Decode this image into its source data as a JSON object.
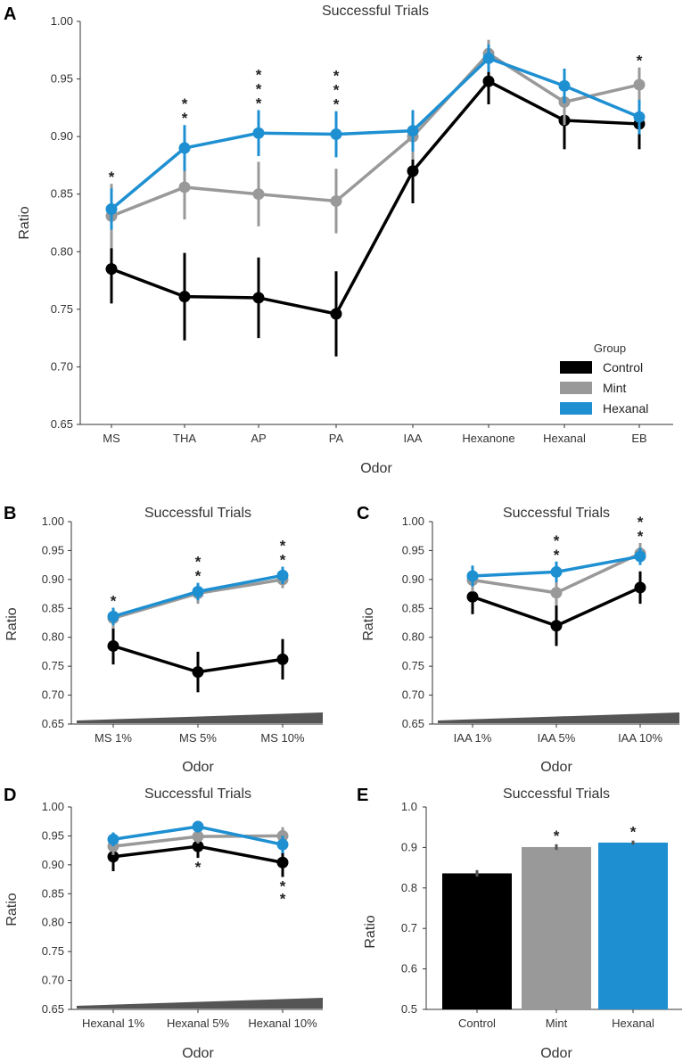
{
  "colors": {
    "Control": "#000000",
    "Mint": "#999999",
    "Hexanal": "#1e90d2",
    "red": "#d22a2a",
    "wedge": "#555555"
  },
  "panels": [
    {
      "letter": "A",
      "title": "Successful Trials",
      "xlabel": "Odor",
      "ylabel": "Ratio",
      "yticks": [
        "0.65",
        "0.70",
        "0.75",
        "0.80",
        "0.85",
        "0.90",
        "0.95",
        "1.00"
      ],
      "categories": [
        "MS",
        "THA",
        "AP",
        "PA",
        "IAA",
        "Hexanone",
        "Hexanal",
        "EB"
      ],
      "legend_title": "Group",
      "legend_items": [
        "Control",
        "Mint",
        "Hexanal"
      ]
    },
    {
      "letter": "B",
      "title": "Successful Trials",
      "xlabel": "Odor",
      "ylabel": "Ratio",
      "yticks": [
        "0.65",
        "0.70",
        "0.75",
        "0.80",
        "0.85",
        "0.90",
        "0.95",
        "1.00"
      ],
      "categories": [
        "MS 1%",
        "MS 5%",
        "MS 10%"
      ]
    },
    {
      "letter": "C",
      "title": "Successful Trials",
      "xlabel": "Odor",
      "ylabel": "Ratio",
      "yticks": [
        "0.65",
        "0.70",
        "0.75",
        "0.80",
        "0.85",
        "0.90",
        "0.95",
        "1.00"
      ],
      "categories": [
        "IAA 1%",
        "IAA 5%",
        "IAA 10%"
      ]
    },
    {
      "letter": "D",
      "title": "Successful Trials",
      "xlabel": "Odor",
      "ylabel": "Ratio",
      "yticks": [
        "0.65",
        "0.70",
        "0.75",
        "0.80",
        "0.85",
        "0.90",
        "0.95",
        "1.00"
      ],
      "categories": [
        "Hexanal 1%",
        "Hexanal 5%",
        "Hexanal 10%"
      ]
    },
    {
      "letter": "E",
      "title": "Successful Trials",
      "xlabel": "Odor",
      "ylabel": "Ratio",
      "yticks": [
        "0.5",
        "0.6",
        "0.7",
        "0.8",
        "0.9",
        "1.0"
      ],
      "categories": [
        "Control",
        "Mint",
        "Hexanal"
      ]
    }
  ],
  "star_symbol": "*",
  "chart_data": [
    {
      "type": "line",
      "title": "Successful Trials",
      "xlabel": "Odor",
      "ylabel": "Ratio",
      "ylim": [
        0.65,
        1.0
      ],
      "categories": [
        "MS",
        "THA",
        "AP",
        "PA",
        "IAA",
        "Hexanone",
        "Hexanal",
        "EB"
      ],
      "legend": "bottom-right",
      "series": [
        {
          "name": "Control",
          "values": [
            0.785,
            0.761,
            0.76,
            0.746,
            0.87,
            0.948,
            0.914,
            0.911
          ],
          "err": [
            0.03,
            0.038,
            0.035,
            0.037,
            0.028,
            0.02,
            0.025,
            0.022
          ]
        },
        {
          "name": "Mint",
          "values": [
            0.831,
            0.856,
            0.85,
            0.844,
            0.9,
            0.972,
            0.93,
            0.945
          ],
          "err": [
            0.028,
            0.028,
            0.028,
            0.028,
            0.02,
            0.012,
            0.02,
            0.015
          ]
        },
        {
          "name": "Hexanal",
          "values": [
            0.837,
            0.89,
            0.903,
            0.902,
            0.905,
            0.968,
            0.944,
            0.917
          ],
          "err": [
            0.018,
            0.02,
            0.02,
            0.02,
            0.018,
            0.012,
            0.015,
            0.015
          ]
        }
      ],
      "significance": [
        {
          "index": 0,
          "marks": [
            "Hexanal"
          ]
        },
        {
          "index": 1,
          "marks": [
            "Hexanal",
            "Mint"
          ]
        },
        {
          "index": 2,
          "marks": [
            "red",
            "Hexanal",
            "Mint"
          ]
        },
        {
          "index": 3,
          "marks": [
            "red",
            "Hexanal",
            "Mint"
          ]
        },
        {
          "index": 7,
          "marks": [
            "Mint"
          ]
        }
      ]
    },
    {
      "type": "line",
      "title": "Successful Trials",
      "xlabel": "Odor",
      "ylabel": "Ratio",
      "ylim": [
        0.65,
        1.0
      ],
      "categories": [
        "MS 1%",
        "MS 5%",
        "MS 10%"
      ],
      "series": [
        {
          "name": "Control",
          "values": [
            0.785,
            0.74,
            0.762
          ],
          "err": [
            0.032,
            0.035,
            0.035
          ]
        },
        {
          "name": "Mint",
          "values": [
            0.833,
            0.876,
            0.9
          ],
          "err": [
            0.018,
            0.018,
            0.015
          ]
        },
        {
          "name": "Hexanal",
          "values": [
            0.836,
            0.879,
            0.907
          ],
          "err": [
            0.015,
            0.015,
            0.015
          ]
        }
      ],
      "significance": [
        {
          "index": 0,
          "marks": [
            "Hexanal"
          ]
        },
        {
          "index": 1,
          "marks": [
            "Hexanal",
            "Mint"
          ]
        },
        {
          "index": 2,
          "marks": [
            "Hexanal",
            "Mint"
          ]
        }
      ]
    },
    {
      "type": "line",
      "title": "Successful Trials",
      "xlabel": "Odor",
      "ylabel": "Ratio",
      "ylim": [
        0.65,
        1.0
      ],
      "categories": [
        "IAA 1%",
        "IAA 5%",
        "IAA 10%"
      ],
      "series": [
        {
          "name": "Control",
          "values": [
            0.87,
            0.82,
            0.886
          ],
          "err": [
            0.03,
            0.035,
            0.028
          ]
        },
        {
          "name": "Mint",
          "values": [
            0.899,
            0.877,
            0.945
          ],
          "err": [
            0.02,
            0.022,
            0.018
          ]
        },
        {
          "name": "Hexanal",
          "values": [
            0.906,
            0.913,
            0.94
          ],
          "err": [
            0.018,
            0.018,
            0.015
          ]
        }
      ],
      "significance": [
        {
          "index": 1,
          "marks": [
            "Hexanal",
            "Mint"
          ]
        },
        {
          "index": 2,
          "marks": [
            "Hexanal",
            "Mint"
          ]
        }
      ]
    },
    {
      "type": "line",
      "title": "Successful Trials",
      "xlabel": "Odor",
      "ylabel": "Ratio",
      "ylim": [
        0.65,
        1.0
      ],
      "categories": [
        "Hexanal 1%",
        "Hexanal 5%",
        "Hexanal 10%"
      ],
      "series": [
        {
          "name": "Control",
          "values": [
            0.914,
            0.932,
            0.904
          ],
          "err": [
            0.025,
            0.02,
            0.025
          ]
        },
        {
          "name": "Mint",
          "values": [
            0.932,
            0.949,
            0.95
          ],
          "err": [
            0.015,
            0.012,
            0.015
          ]
        },
        {
          "name": "Hexanal",
          "values": [
            0.944,
            0.966,
            0.935
          ],
          "err": [
            0.012,
            0.01,
            0.015
          ]
        }
      ],
      "significance": [
        {
          "index": 1,
          "below": true,
          "marks": [
            "Hexanal"
          ]
        },
        {
          "index": 2,
          "below": true,
          "marks": [
            "Hexanal",
            "Mint"
          ]
        }
      ]
    },
    {
      "type": "bar",
      "title": "Successful Trials",
      "xlabel": "Odor",
      "ylabel": "Ratio",
      "ylim": [
        0.5,
        1.0
      ],
      "categories": [
        "Control",
        "Mint",
        "Hexanal"
      ],
      "values": [
        0.836,
        0.901,
        0.912
      ],
      "err": [
        0.008,
        0.007,
        0.005
      ],
      "significance": [
        {
          "index": 1,
          "marks": [
            "Mint"
          ]
        },
        {
          "index": 2,
          "marks": [
            "Hexanal"
          ]
        }
      ]
    }
  ]
}
